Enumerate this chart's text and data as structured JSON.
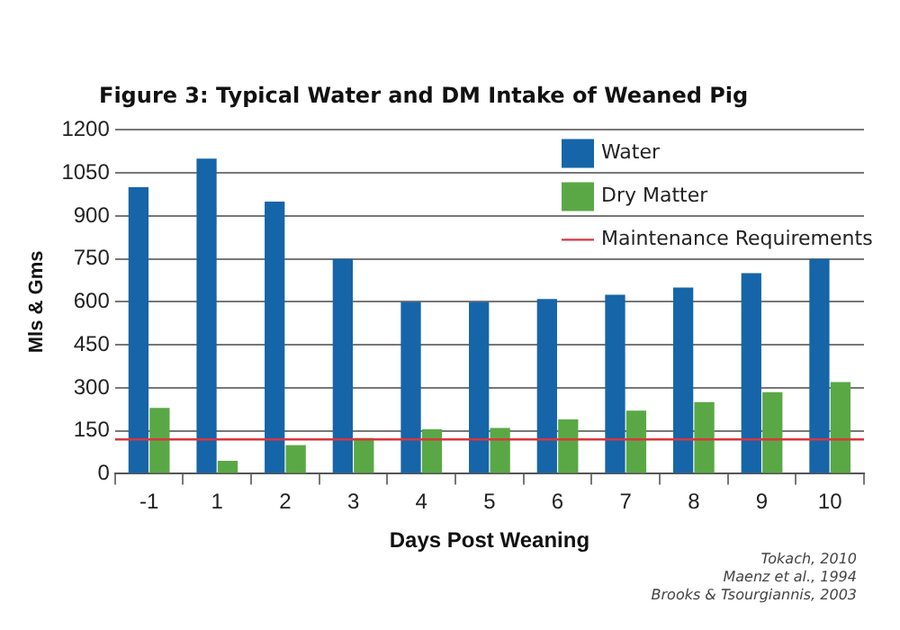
{
  "chart_data": {
    "type": "bar",
    "title": "Figure 3:  Typical Water and DM Intake of Weaned Pig",
    "xlabel": "Days Post Weaning",
    "ylabel": "Mls & Gms",
    "categories": [
      "-1",
      "1",
      "2",
      "3",
      "4",
      "5",
      "6",
      "7",
      "8",
      "9",
      "10"
    ],
    "series": [
      {
        "name": "Water",
        "color": "#1565a8",
        "values": [
          1000,
          1100,
          950,
          750,
          600,
          600,
          610,
          625,
          650,
          700,
          750
        ]
      },
      {
        "name": "Dry Matter",
        "color": "#5aa845",
        "values": [
          230,
          45,
          100,
          125,
          155,
          160,
          190,
          220,
          250,
          285,
          320
        ]
      }
    ],
    "ref_lines": [
      {
        "axis": "y",
        "value": 120,
        "label": "Maintenance Requirements",
        "color": "#d9363e"
      }
    ],
    "ylim": [
      0,
      1200
    ],
    "yticks": [
      0,
      150,
      300,
      450,
      600,
      750,
      900,
      1050,
      1200
    ],
    "grid": "y",
    "legend": "top right",
    "annotations": [
      "Tokach, 2010",
      "Maenz et al., 1994",
      "Brooks & Tsourgiannis, 2003"
    ]
  }
}
